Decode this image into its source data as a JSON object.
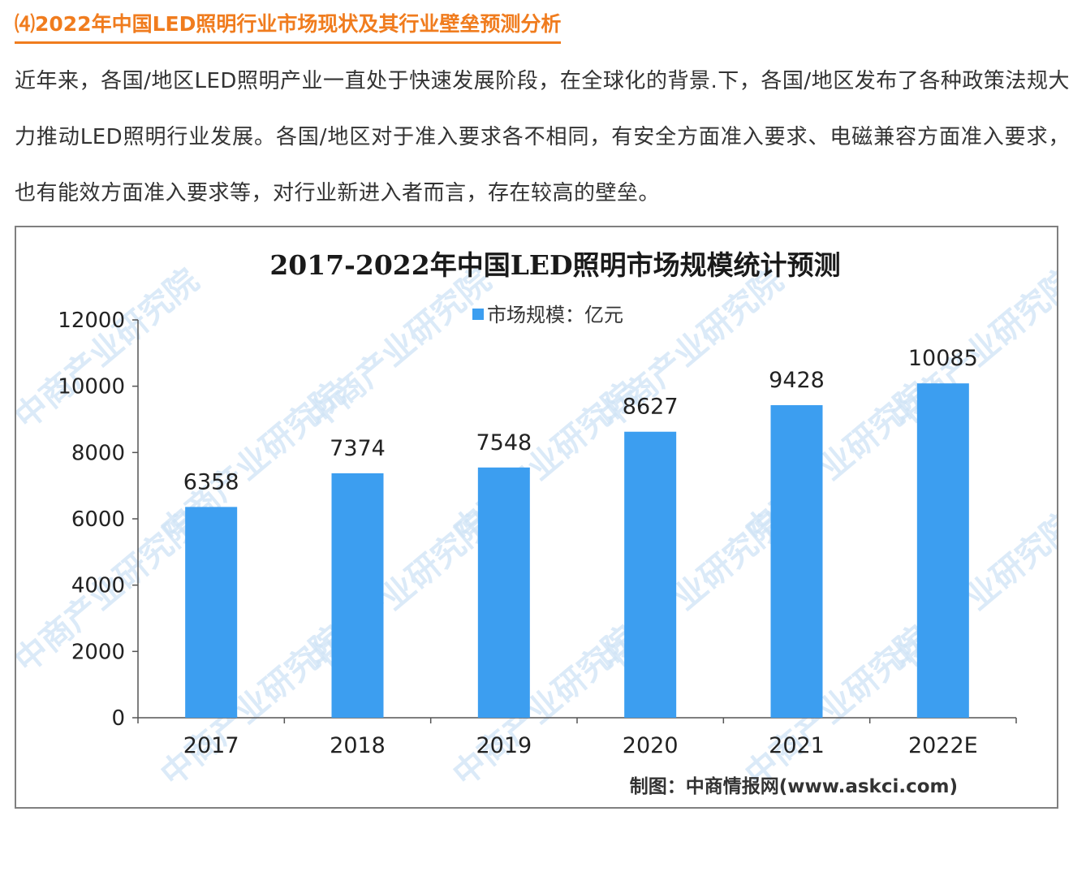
{
  "article": {
    "heading": "⑷2022年中国LED照明行业市场现状及其行业壁垒预测分析",
    "paragraph": "近年来，各国/地区LED照明产业一直处于快速发展阶段，在全球化的背景.下，各国/地区发布了各种政策法规大力推动LED照明行业发展。各国/地区对于准入要求各不相同，有安全方面准入要求、电磁兼容方面准入要求，也有能效方面准入要求等，对行业新进入者而言，存在较高的壁垒。"
  },
  "chart_data": {
    "type": "bar",
    "title": "2017-2022年中国LED照明市场规模统计预测",
    "categories": [
      "2017",
      "2018",
      "2019",
      "2020",
      "2021",
      "2022E"
    ],
    "series": [
      {
        "name": "市场规模：亿元",
        "values": [
          6358,
          7374,
          7548,
          8627,
          9428,
          10085
        ]
      }
    ],
    "data_labels": [
      "6358",
      "7374",
      "7548",
      "8627",
      "9428",
      "10085"
    ],
    "ylim": [
      0,
      12000
    ],
    "yticks": [
      0,
      2000,
      4000,
      6000,
      8000,
      10000,
      12000
    ],
    "ytick_labels": [
      "0",
      "2000",
      "4000",
      "6000",
      "8000",
      "10000",
      "12000"
    ],
    "legend_position": "top-center",
    "grid": false,
    "bar_color": "#3c9ef0",
    "source": "制图：中商情报网(www.askci.com)",
    "watermark": "中商产业研究院"
  }
}
